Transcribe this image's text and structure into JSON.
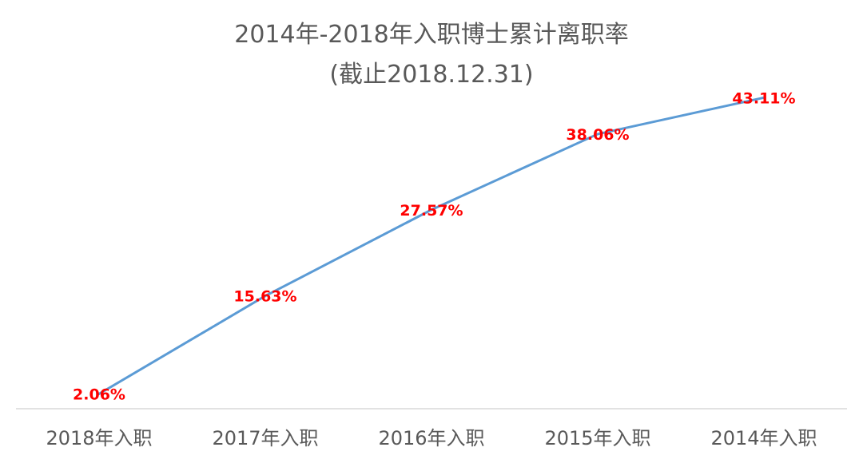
{
  "chart_data": {
    "type": "line",
    "title": "2014年-2018年入职博士累计离职率",
    "subtitle": "(截止2018.12.31)",
    "categories": [
      "2018年入职",
      "2017年入职",
      "2016年入职",
      "2015年入职",
      "2014年入职"
    ],
    "series": [
      {
        "values": [
          2.06,
          15.63,
          27.57,
          38.06,
          43.11
        ],
        "labels": [
          "2.06%",
          "15.63%",
          "27.57%",
          "38.06%",
          "43.11%"
        ],
        "color": "#5b9bd5"
      }
    ],
    "data_label_color": "#ff0000",
    "axis_color": "#d9d9d9",
    "ylim": [
      0,
      50
    ],
    "grid": false,
    "legend": "none"
  }
}
